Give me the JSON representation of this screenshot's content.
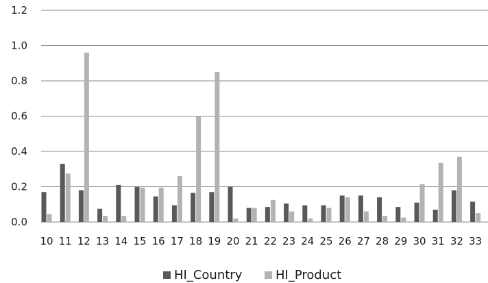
{
  "chart_data": {
    "type": "bar",
    "title": "",
    "xlabel": "",
    "ylabel": "",
    "ylim": [
      0,
      1.2
    ],
    "yticks": [
      "0.0",
      "0.2",
      "0.4",
      "0.6",
      "0.8",
      "1.0",
      "1.2"
    ],
    "grid": true,
    "legend_position": "bottom-center",
    "categories": [
      "10",
      "11",
      "12",
      "13",
      "14",
      "15",
      "16",
      "17",
      "18",
      "19",
      "20",
      "21",
      "22",
      "23",
      "24",
      "25",
      "26",
      "27",
      "28",
      "29",
      "30",
      "31",
      "32",
      "33"
    ],
    "series": [
      {
        "name": "HI_Country",
        "color": "#595959",
        "values": [
          0.17,
          0.33,
          0.18,
          0.075,
          0.21,
          0.2,
          0.145,
          0.095,
          0.165,
          0.17,
          0.2,
          0.08,
          0.085,
          0.105,
          0.095,
          0.095,
          0.15,
          0.15,
          0.14,
          0.085,
          0.11,
          0.07,
          0.18,
          0.115
        ]
      },
      {
        "name": "HI_Product",
        "color": "#b3b3b3",
        "values": [
          0.045,
          0.275,
          0.96,
          0.035,
          0.035,
          0.195,
          0.195,
          0.26,
          0.6,
          0.85,
          0.02,
          0.08,
          0.125,
          0.06,
          0.02,
          0.08,
          0.14,
          0.06,
          0.035,
          0.025,
          0.215,
          0.335,
          0.37,
          0.05
        ]
      }
    ]
  }
}
